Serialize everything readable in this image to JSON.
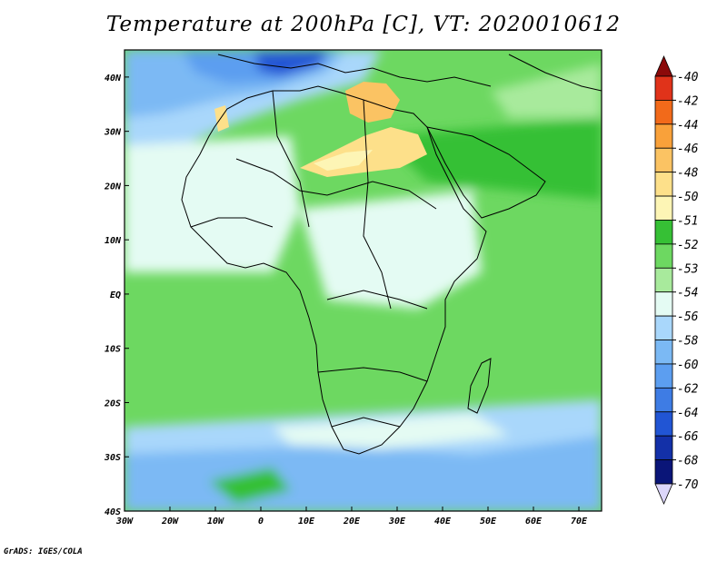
{
  "title": "Temperature at 200hPa [C], VT: 2020010612",
  "footer": "GrADS: IGES/COLA",
  "map": {
    "lon_range": [
      -30,
      75
    ],
    "lat_range": [
      -40,
      45
    ],
    "lon_ticks": [
      {
        "value": -30,
        "label": "30W"
      },
      {
        "value": -20,
        "label": "20W"
      },
      {
        "value": -10,
        "label": "10W"
      },
      {
        "value": 0,
        "label": "0"
      },
      {
        "value": 10,
        "label": "10E"
      },
      {
        "value": 20,
        "label": "20E"
      },
      {
        "value": 30,
        "label": "30E"
      },
      {
        "value": 40,
        "label": "40E"
      },
      {
        "value": 50,
        "label": "50E"
      },
      {
        "value": 60,
        "label": "60E"
      },
      {
        "value": 70,
        "label": "70E"
      }
    ],
    "lat_ticks": [
      {
        "value": 40,
        "label": "40N"
      },
      {
        "value": 30,
        "label": "30N"
      },
      {
        "value": 20,
        "label": "20N"
      },
      {
        "value": 10,
        "label": "10N"
      },
      {
        "value": 0,
        "label": "EQ"
      },
      {
        "value": -10,
        "label": "10S"
      },
      {
        "value": -20,
        "label": "20S"
      },
      {
        "value": -30,
        "label": "30S"
      },
      {
        "value": -40,
        "label": "40S"
      }
    ]
  },
  "colorbar": {
    "bins": [
      {
        "color": "#8b0a0a",
        "label": "-40"
      },
      {
        "color": "#e0331a",
        "label": "-42"
      },
      {
        "color": "#f26a1a",
        "label": "-44"
      },
      {
        "color": "#f9a13a",
        "label": "-46"
      },
      {
        "color": "#fbc363",
        "label": "-48"
      },
      {
        "color": "#fde08a",
        "label": "-50"
      },
      {
        "color": "#fdf5b5",
        "label": "-51"
      },
      {
        "color": "#36c035",
        "label": "-52"
      },
      {
        "color": "#6dd861",
        "label": "-53"
      },
      {
        "color": "#a8ea9c",
        "label": "-54"
      },
      {
        "color": "#e4fbf3",
        "label": "-56"
      },
      {
        "color": "#a9d7fb",
        "label": "-58"
      },
      {
        "color": "#7bb9f4",
        "label": "-60"
      },
      {
        "color": "#5c9ef0",
        "label": "-62"
      },
      {
        "color": "#3e7ce4",
        "label": "-64"
      },
      {
        "color": "#2155d4",
        "label": "-66"
      },
      {
        "color": "#1330a8",
        "label": "-68"
      },
      {
        "color": "#0a1578",
        "label": "-70"
      },
      {
        "color": "#dcd6fa",
        "label": ""
      }
    ]
  }
}
